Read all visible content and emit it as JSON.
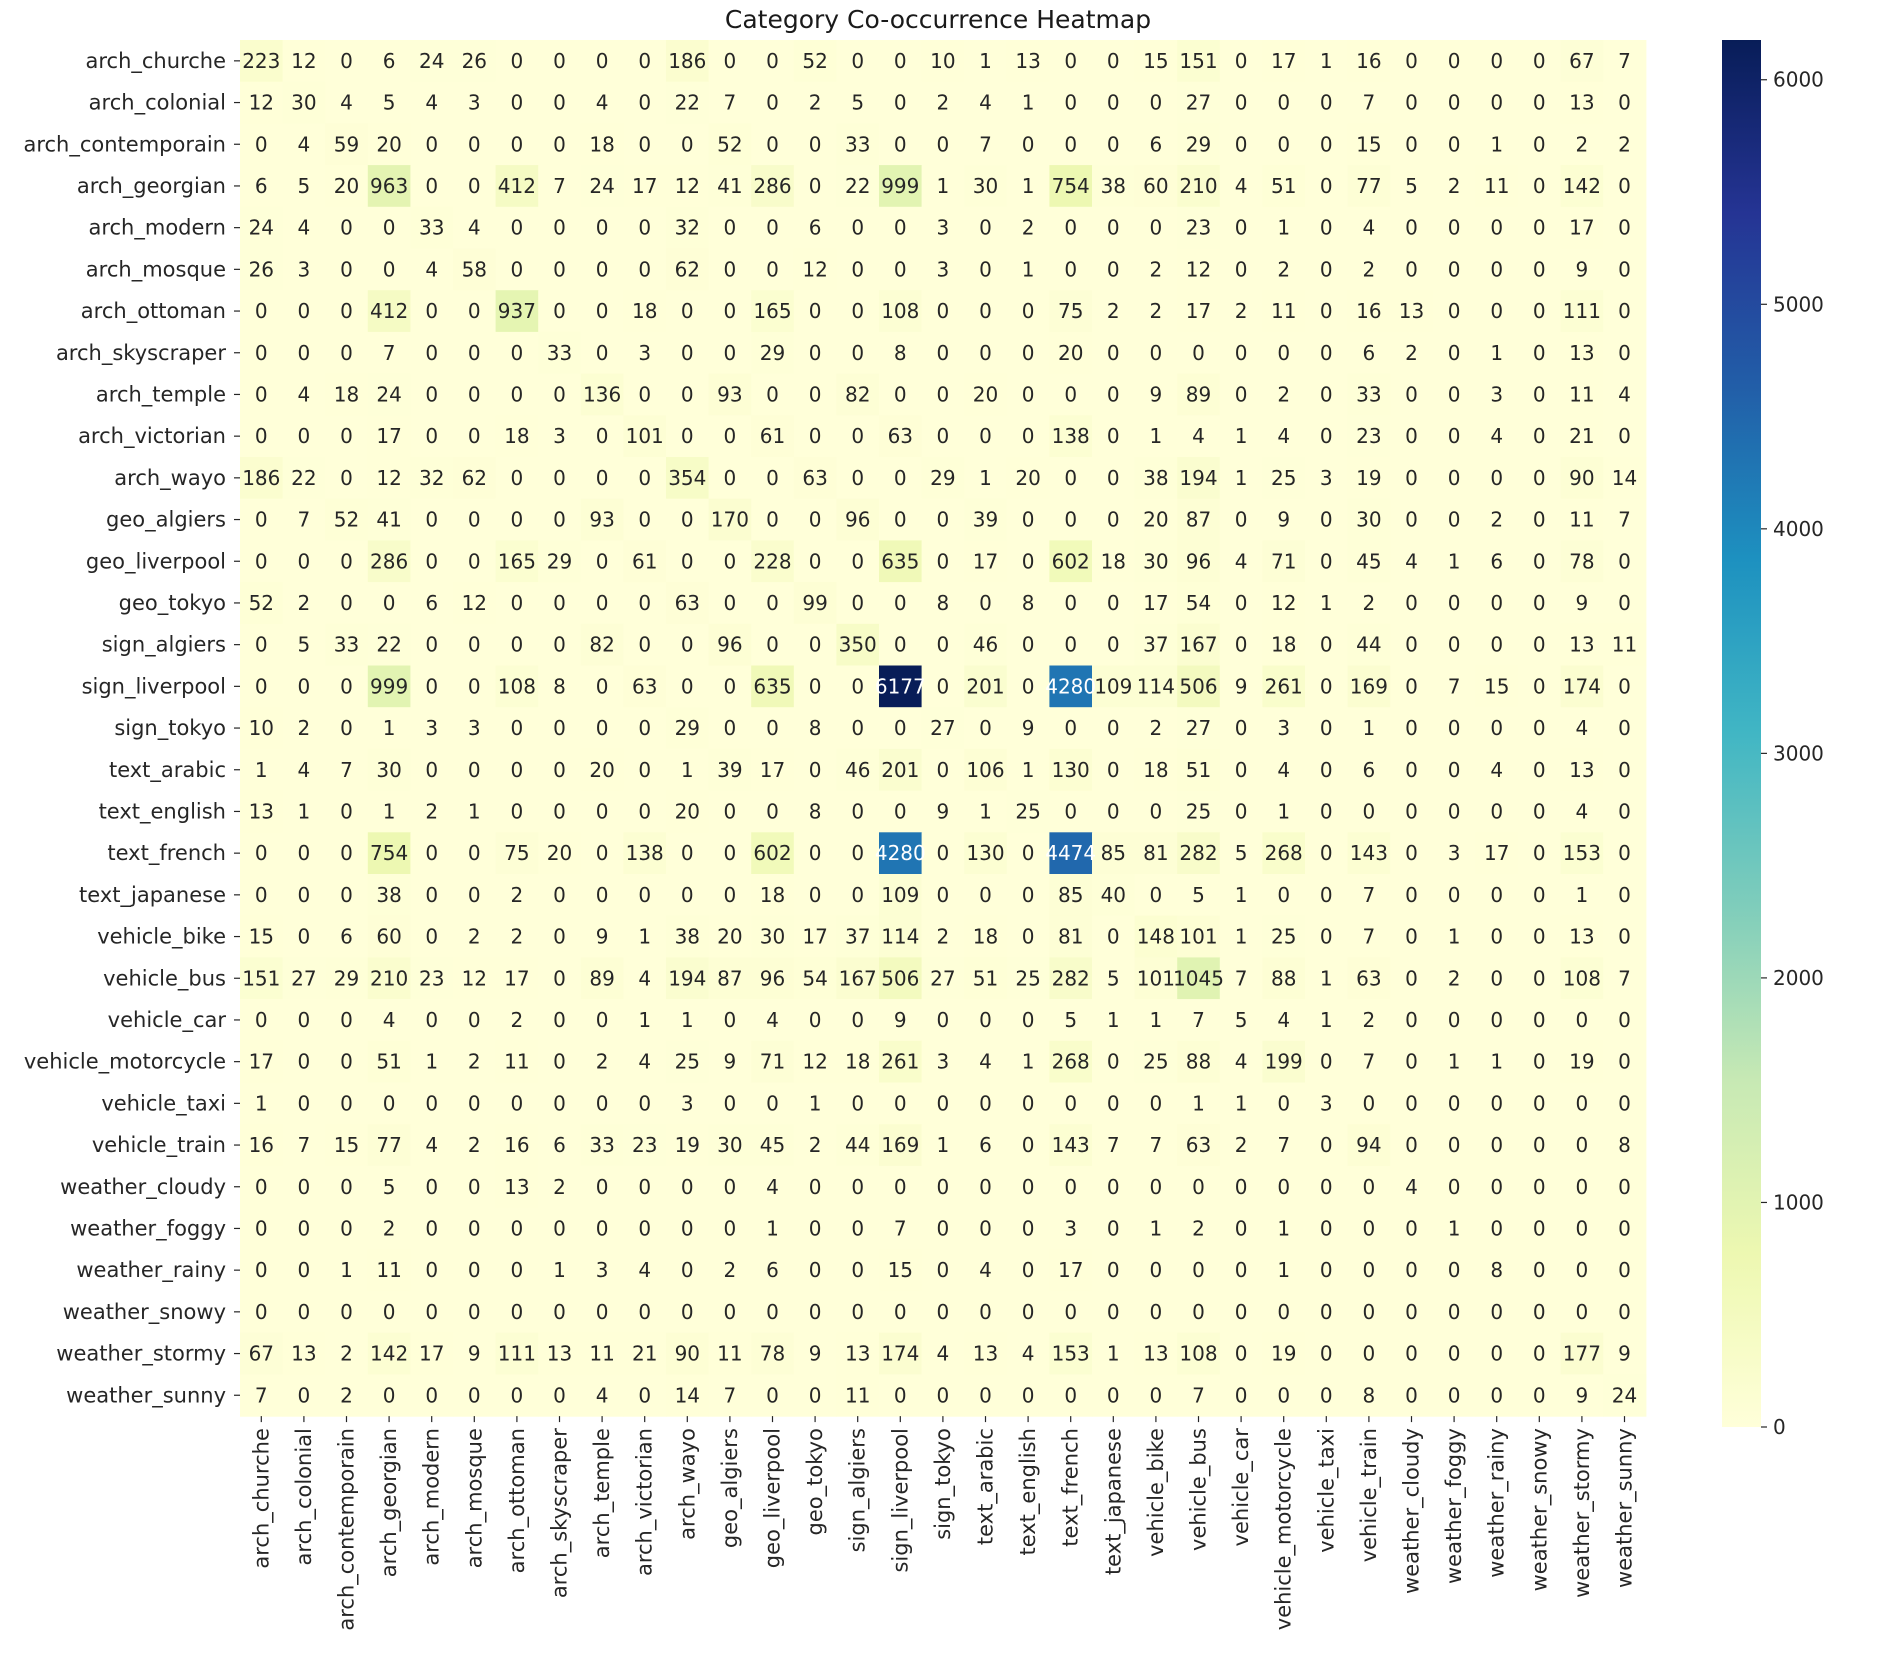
{
  "chart_data": {
    "type": "heatmap",
    "title": "Category Co-occurrence Heatmap",
    "xlabel": "",
    "ylabel": "",
    "colormap": "YlGnBu",
    "colorbar": {
      "min": 0,
      "max": 6177,
      "ticks": [
        0,
        1000,
        2000,
        3000,
        4000,
        5000,
        6000
      ]
    },
    "categories": [
      "arch_churche",
      "arch_colonial",
      "arch_contemporain",
      "arch_georgian",
      "arch_modern",
      "arch_mosque",
      "arch_ottoman",
      "arch_skyscraper",
      "arch_temple",
      "arch_victorian",
      "arch_wayo",
      "geo_algiers",
      "geo_liverpool",
      "geo_tokyo",
      "sign_algiers",
      "sign_liverpool",
      "sign_tokyo",
      "text_arabic",
      "text_english",
      "text_french",
      "text_japanese",
      "vehicle_bike",
      "vehicle_bus",
      "vehicle_car",
      "vehicle_motorcycle",
      "vehicle_taxi",
      "vehicle_train",
      "weather_cloudy",
      "weather_foggy",
      "weather_rainy",
      "weather_snowy",
      "weather_stormy",
      "weather_sunny"
    ],
    "values": [
      [
        223,
        12,
        0,
        6,
        24,
        26,
        0,
        0,
        0,
        0,
        186,
        0,
        0,
        52,
        0,
        0,
        10,
        1,
        13,
        0,
        0,
        15,
        151,
        0,
        17,
        1,
        16,
        0,
        0,
        0,
        0,
        67,
        7
      ],
      [
        12,
        30,
        4,
        5,
        4,
        3,
        0,
        0,
        4,
        0,
        22,
        7,
        0,
        2,
        5,
        0,
        2,
        4,
        1,
        0,
        0,
        0,
        27,
        0,
        0,
        0,
        7,
        0,
        0,
        0,
        0,
        13,
        0
      ],
      [
        0,
        4,
        59,
        20,
        0,
        0,
        0,
        0,
        18,
        0,
        0,
        52,
        0,
        0,
        33,
        0,
        0,
        7,
        0,
        0,
        0,
        6,
        29,
        0,
        0,
        0,
        15,
        0,
        0,
        1,
        0,
        2,
        2
      ],
      [
        6,
        5,
        20,
        963,
        0,
        0,
        412,
        7,
        24,
        17,
        12,
        41,
        286,
        0,
        22,
        999,
        1,
        30,
        1,
        754,
        38,
        60,
        210,
        4,
        51,
        0,
        77,
        5,
        2,
        11,
        0,
        142,
        0
      ],
      [
        24,
        4,
        0,
        0,
        33,
        4,
        0,
        0,
        0,
        0,
        32,
        0,
        0,
        6,
        0,
        0,
        3,
        0,
        2,
        0,
        0,
        0,
        23,
        0,
        1,
        0,
        4,
        0,
        0,
        0,
        0,
        17,
        0
      ],
      [
        26,
        3,
        0,
        0,
        4,
        58,
        0,
        0,
        0,
        0,
        62,
        0,
        0,
        12,
        0,
        0,
        3,
        0,
        1,
        0,
        0,
        2,
        12,
        0,
        2,
        0,
        2,
        0,
        0,
        0,
        0,
        9,
        0
      ],
      [
        0,
        0,
        0,
        412,
        0,
        0,
        937,
        0,
        0,
        18,
        0,
        0,
        165,
        0,
        0,
        108,
        0,
        0,
        0,
        75,
        2,
        2,
        17,
        2,
        11,
        0,
        16,
        13,
        0,
        0,
        0,
        111,
        0
      ],
      [
        0,
        0,
        0,
        7,
        0,
        0,
        0,
        33,
        0,
        3,
        0,
        0,
        29,
        0,
        0,
        8,
        0,
        0,
        0,
        20,
        0,
        0,
        0,
        0,
        0,
        0,
        6,
        2,
        0,
        1,
        0,
        13,
        0
      ],
      [
        0,
        4,
        18,
        24,
        0,
        0,
        0,
        0,
        136,
        0,
        0,
        93,
        0,
        0,
        82,
        0,
        0,
        20,
        0,
        0,
        0,
        9,
        89,
        0,
        2,
        0,
        33,
        0,
        0,
        3,
        0,
        11,
        4
      ],
      [
        0,
        0,
        0,
        17,
        0,
        0,
        18,
        3,
        0,
        101,
        0,
        0,
        61,
        0,
        0,
        63,
        0,
        0,
        0,
        138,
        0,
        1,
        4,
        1,
        4,
        0,
        23,
        0,
        0,
        4,
        0,
        21,
        0
      ],
      [
        186,
        22,
        0,
        12,
        32,
        62,
        0,
        0,
        0,
        0,
        354,
        0,
        0,
        63,
        0,
        0,
        29,
        1,
        20,
        0,
        0,
        38,
        194,
        1,
        25,
        3,
        19,
        0,
        0,
        0,
        0,
        90,
        14
      ],
      [
        0,
        7,
        52,
        41,
        0,
        0,
        0,
        0,
        93,
        0,
        0,
        170,
        0,
        0,
        96,
        0,
        0,
        39,
        0,
        0,
        0,
        20,
        87,
        0,
        9,
        0,
        30,
        0,
        0,
        2,
        0,
        11,
        7
      ],
      [
        0,
        0,
        0,
        286,
        0,
        0,
        165,
        29,
        0,
        61,
        0,
        0,
        228,
        0,
        0,
        635,
        0,
        17,
        0,
        602,
        18,
        30,
        96,
        4,
        71,
        0,
        45,
        4,
        1,
        6,
        0,
        78,
        0
      ],
      [
        52,
        2,
        0,
        0,
        6,
        12,
        0,
        0,
        0,
        0,
        63,
        0,
        0,
        99,
        0,
        0,
        8,
        0,
        8,
        0,
        0,
        17,
        54,
        0,
        12,
        1,
        2,
        0,
        0,
        0,
        0,
        9,
        0
      ],
      [
        0,
        5,
        33,
        22,
        0,
        0,
        0,
        0,
        82,
        0,
        0,
        96,
        0,
        0,
        350,
        0,
        0,
        46,
        0,
        0,
        0,
        37,
        167,
        0,
        18,
        0,
        44,
        0,
        0,
        0,
        0,
        13,
        11
      ],
      [
        0,
        0,
        0,
        999,
        0,
        0,
        108,
        8,
        0,
        63,
        0,
        0,
        635,
        0,
        0,
        6177,
        0,
        201,
        0,
        4280,
        109,
        114,
        506,
        9,
        261,
        0,
        169,
        0,
        7,
        15,
        0,
        174,
        0
      ],
      [
        10,
        2,
        0,
        1,
        3,
        3,
        0,
        0,
        0,
        0,
        29,
        0,
        0,
        8,
        0,
        0,
        27,
        0,
        9,
        0,
        0,
        2,
        27,
        0,
        3,
        0,
        1,
        0,
        0,
        0,
        0,
        4,
        0
      ],
      [
        1,
        4,
        7,
        30,
        0,
        0,
        0,
        0,
        20,
        0,
        1,
        39,
        17,
        0,
        46,
        201,
        0,
        106,
        1,
        130,
        0,
        18,
        51,
        0,
        4,
        0,
        6,
        0,
        0,
        4,
        0,
        13,
        0
      ],
      [
        13,
        1,
        0,
        1,
        2,
        1,
        0,
        0,
        0,
        0,
        20,
        0,
        0,
        8,
        0,
        0,
        9,
        1,
        25,
        0,
        0,
        0,
        25,
        0,
        1,
        0,
        0,
        0,
        0,
        0,
        0,
        4,
        0
      ],
      [
        0,
        0,
        0,
        754,
        0,
        0,
        75,
        20,
        0,
        138,
        0,
        0,
        602,
        0,
        0,
        4280,
        0,
        130,
        0,
        4474,
        85,
        81,
        282,
        5,
        268,
        0,
        143,
        0,
        3,
        17,
        0,
        153,
        0
      ],
      [
        0,
        0,
        0,
        38,
        0,
        0,
        2,
        0,
        0,
        0,
        0,
        0,
        18,
        0,
        0,
        109,
        0,
        0,
        0,
        85,
        40,
        0,
        5,
        1,
        0,
        0,
        7,
        0,
        0,
        0,
        0,
        1,
        0
      ],
      [
        15,
        0,
        6,
        60,
        0,
        2,
        2,
        0,
        9,
        1,
        38,
        20,
        30,
        17,
        37,
        114,
        2,
        18,
        0,
        81,
        0,
        148,
        101,
        1,
        25,
        0,
        7,
        0,
        1,
        0,
        0,
        13,
        0
      ],
      [
        151,
        27,
        29,
        210,
        23,
        12,
        17,
        0,
        89,
        4,
        194,
        87,
        96,
        54,
        167,
        506,
        27,
        51,
        25,
        282,
        5,
        101,
        1045,
        7,
        88,
        1,
        63,
        0,
        2,
        0,
        0,
        108,
        7
      ],
      [
        0,
        0,
        0,
        4,
        0,
        0,
        2,
        0,
        0,
        1,
        1,
        0,
        4,
        0,
        0,
        9,
        0,
        0,
        0,
        5,
        1,
        1,
        7,
        5,
        4,
        1,
        2,
        0,
        0,
        0,
        0,
        0,
        0
      ],
      [
        17,
        0,
        0,
        51,
        1,
        2,
        11,
        0,
        2,
        4,
        25,
        9,
        71,
        12,
        18,
        261,
        3,
        4,
        1,
        268,
        0,
        25,
        88,
        4,
        199,
        0,
        7,
        0,
        1,
        1,
        0,
        19,
        0
      ],
      [
        1,
        0,
        0,
        0,
        0,
        0,
        0,
        0,
        0,
        0,
        3,
        0,
        0,
        1,
        0,
        0,
        0,
        0,
        0,
        0,
        0,
        0,
        1,
        1,
        0,
        3,
        0,
        0,
        0,
        0,
        0,
        0,
        0
      ],
      [
        16,
        7,
        15,
        77,
        4,
        2,
        16,
        6,
        33,
        23,
        19,
        30,
        45,
        2,
        44,
        169,
        1,
        6,
        0,
        143,
        7,
        7,
        63,
        2,
        7,
        0,
        94,
        0,
        0,
        0,
        0,
        0,
        8
      ],
      [
        0,
        0,
        0,
        5,
        0,
        0,
        13,
        2,
        0,
        0,
        0,
        0,
        4,
        0,
        0,
        0,
        0,
        0,
        0,
        0,
        0,
        0,
        0,
        0,
        0,
        0,
        0,
        4,
        0,
        0,
        0,
        0,
        0
      ],
      [
        0,
        0,
        0,
        2,
        0,
        0,
        0,
        0,
        0,
        0,
        0,
        0,
        1,
        0,
        0,
        7,
        0,
        0,
        0,
        3,
        0,
        1,
        2,
        0,
        1,
        0,
        0,
        0,
        1,
        0,
        0,
        0,
        0
      ],
      [
        0,
        0,
        1,
        11,
        0,
        0,
        0,
        1,
        3,
        4,
        0,
        2,
        6,
        0,
        0,
        15,
        0,
        4,
        0,
        17,
        0,
        0,
        0,
        0,
        1,
        0,
        0,
        0,
        0,
        8,
        0,
        0,
        0
      ],
      [
        0,
        0,
        0,
        0,
        0,
        0,
        0,
        0,
        0,
        0,
        0,
        0,
        0,
        0,
        0,
        0,
        0,
        0,
        0,
        0,
        0,
        0,
        0,
        0,
        0,
        0,
        0,
        0,
        0,
        0,
        0,
        0,
        0
      ],
      [
        67,
        13,
        2,
        142,
        17,
        9,
        111,
        13,
        11,
        21,
        90,
        11,
        78,
        9,
        13,
        174,
        4,
        13,
        4,
        153,
        1,
        13,
        108,
        0,
        19,
        0,
        0,
        0,
        0,
        0,
        0,
        177,
        9
      ],
      [
        7,
        0,
        2,
        0,
        0,
        0,
        0,
        0,
        4,
        0,
        14,
        7,
        0,
        0,
        11,
        0,
        0,
        0,
        0,
        0,
        0,
        0,
        7,
        0,
        0,
        0,
        8,
        0,
        0,
        0,
        0,
        9,
        24
      ]
    ],
    "colors": {
      "min": "#ffffd9",
      "max": "#081d58",
      "text_dark": "#262626",
      "text_light": "#ffffff"
    }
  }
}
